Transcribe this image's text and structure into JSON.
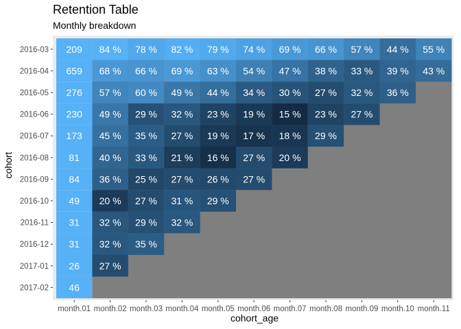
{
  "chart_data": {
    "type": "heatmap",
    "title": "Retention Table",
    "subtitle": "Monthly breakdown",
    "xlabel": "cohort_age",
    "ylabel": "cohort",
    "columns": [
      "month.01",
      "month.02",
      "month.03",
      "month.04",
      "month.05",
      "month.06",
      "month.07",
      "month.08",
      "month.09",
      "month.10",
      "month.11"
    ],
    "rows": [
      "2016-03",
      "2016-04",
      "2016-05",
      "2016-06",
      "2016-07",
      "2016-08",
      "2016-09",
      "2016-10",
      "2016-11",
      "2016-12",
      "2017-01",
      "2017-02"
    ],
    "cohort_size": [
      209,
      659,
      276,
      230,
      173,
      81,
      84,
      49,
      31,
      31,
      26,
      46
    ],
    "retention_pct": [
      [
        84,
        78,
        82,
        79,
        74,
        69,
        66,
        57,
        44,
        55
      ],
      [
        68,
        66,
        69,
        63,
        54,
        47,
        38,
        33,
        39,
        43
      ],
      [
        57,
        60,
        49,
        44,
        34,
        30,
        27,
        32,
        36
      ],
      [
        49,
        29,
        32,
        23,
        19,
        15,
        23,
        27
      ],
      [
        45,
        35,
        27,
        19,
        17,
        18,
        29
      ],
      [
        40,
        33,
        21,
        16,
        27,
        20
      ],
      [
        36,
        25,
        27,
        26,
        27
      ],
      [
        20,
        27,
        31,
        29
      ],
      [
        32,
        29,
        32
      ],
      [
        32,
        35
      ],
      [
        27
      ],
      []
    ],
    "colors": {
      "panel_background": "#ebebeb",
      "empty_cell": "#7f7f7f",
      "cohort_size_cell": "#56b1f7",
      "low": "#132b43",
      "high": "#56b1f7"
    }
  }
}
